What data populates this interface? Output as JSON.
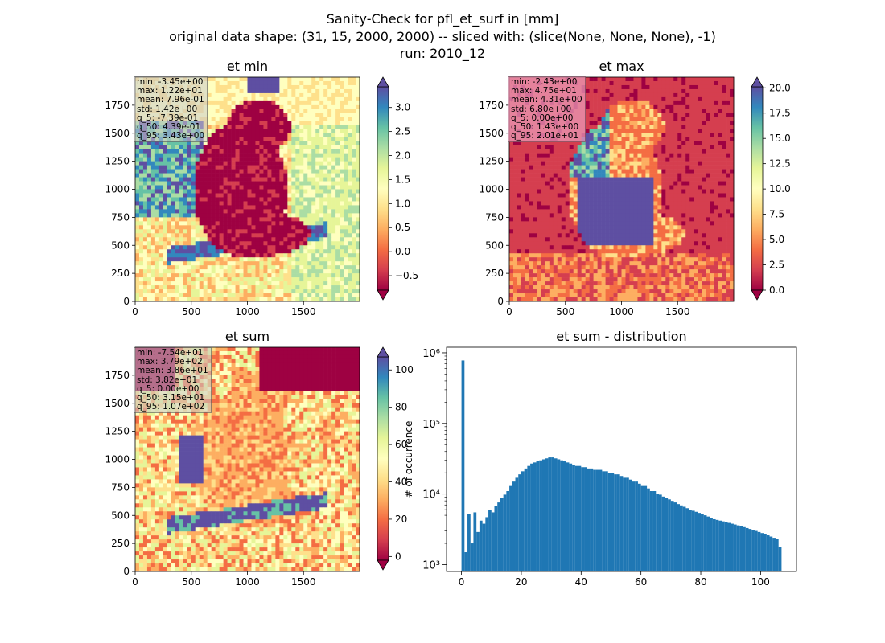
{
  "header": {
    "line1": "Sanity-Check for pfl_et_surf in [mm]",
    "line2": "original data shape: (31, 15, 2000, 2000) -- sliced with: (slice(None, None, None), -1)",
    "line3": "run: 2010_12"
  },
  "colors": {
    "spectral": [
      "#9e0142",
      "#d53e4f",
      "#f46d43",
      "#fdae61",
      "#fee08b",
      "#ffffbf",
      "#e6f598",
      "#abdda4",
      "#66c2a5",
      "#3288bd",
      "#5e4fa2"
    ],
    "histogram_bar": "#1f77b4"
  },
  "chart_data": [
    {
      "type": "heatmap",
      "title": "et min",
      "xlim": [
        0,
        2000
      ],
      "ylim": [
        0,
        2000
      ],
      "xticks": [
        0,
        500,
        1000,
        1500
      ],
      "yticks": [
        0,
        250,
        500,
        750,
        1000,
        1250,
        1500,
        1750
      ],
      "colorbar": {
        "min": -0.8,
        "max": 3.43,
        "ticks": [
          -0.5,
          0.0,
          0.5,
          1.0,
          1.5,
          2.0,
          2.5,
          3.0
        ],
        "tick_labels": [
          "−0.5",
          "0.0",
          "0.5",
          "1.0",
          "1.5",
          "2.0",
          "2.5",
          "3.0"
        ]
      },
      "stats": [
        "min: -3.45e+00",
        "max: 1.22e+01",
        "mean: 7.96e-01",
        "std: 1.42e+00",
        "q_5: -7.39e-01",
        "q_50: 4.39e-01",
        "q_95: 3.43e+00"
      ]
    },
    {
      "type": "heatmap",
      "title": "et max",
      "xlim": [
        0,
        2000
      ],
      "ylim": [
        0,
        2000
      ],
      "xticks": [
        0,
        500,
        1000,
        1500
      ],
      "yticks": [
        0,
        250,
        500,
        750,
        1000,
        1250,
        1500,
        1750
      ],
      "colorbar": {
        "min": 0.0,
        "max": 20.1,
        "ticks": [
          0.0,
          2.5,
          5.0,
          7.5,
          10.0,
          12.5,
          15.0,
          17.5,
          20.0
        ],
        "tick_labels": [
          "0.0",
          "2.5",
          "5.0",
          "7.5",
          "10.0",
          "12.5",
          "15.0",
          "17.5",
          "20.0"
        ]
      },
      "stats": [
        "min: -2.43e+00",
        "max: 4.75e+01",
        "mean: 4.31e+00",
        "std: 6.80e+00",
        "q_5: 0.00e+00",
        "q_50: 1.43e+00",
        "q_95: 2.01e+01"
      ]
    },
    {
      "type": "heatmap",
      "title": "et sum",
      "xlim": [
        0,
        2000
      ],
      "ylim": [
        0,
        2000
      ],
      "xticks": [
        0,
        500,
        1000,
        1500
      ],
      "yticks": [
        0,
        250,
        500,
        750,
        1000,
        1250,
        1500,
        1750
      ],
      "colorbar": {
        "min": -2,
        "max": 107,
        "ticks": [
          0,
          20,
          40,
          60,
          80,
          100
        ],
        "tick_labels": [
          "0",
          "20",
          "40",
          "60",
          "80",
          "100"
        ]
      },
      "stats": [
        "min: -7.54e+01",
        "max: 3.79e+02",
        "mean: 3.86e+01",
        "std: 3.82e+01",
        "q_5: 0.00e+00",
        "q_50: 3.15e+01",
        "q_95: 1.07e+02"
      ]
    },
    {
      "type": "bar",
      "title": "et sum - distribution",
      "ylabel": "# of occurrence",
      "yscale": "log",
      "xlim": [
        -5,
        112
      ],
      "ylim": [
        800,
        1200000
      ],
      "xticks": [
        0,
        20,
        40,
        60,
        80,
        100
      ],
      "ytick_labels": [
        "10³",
        "10⁴",
        "10⁵",
        "10⁶"
      ],
      "yticks": [
        1000,
        10000,
        100000,
        1000000
      ],
      "bin_range": [
        0,
        107
      ],
      "counts": [
        780000,
        1500,
        5200,
        2000,
        5500,
        2900,
        4200,
        3800,
        4700,
        5900,
        5500,
        6800,
        7600,
        8900,
        9800,
        11000,
        13000,
        15000,
        17000,
        19000,
        21000,
        23000,
        25000,
        27000,
        28000,
        29000,
        30000,
        31000,
        32000,
        33000,
        33000,
        32000,
        31000,
        30000,
        29000,
        28000,
        27000,
        26000,
        25000,
        25000,
        24000,
        24000,
        23000,
        23000,
        22000,
        22000,
        22000,
        21000,
        21000,
        20000,
        20000,
        19000,
        19000,
        18000,
        17000,
        17000,
        16000,
        15000,
        15000,
        14000,
        13000,
        13000,
        12000,
        11000,
        11000,
        10000,
        9800,
        9200,
        8800,
        8400,
        8000,
        7600,
        7200,
        6900,
        6600,
        6300,
        6000,
        5800,
        5600,
        5400,
        5200,
        5000,
        4800,
        4600,
        4400,
        4300,
        4200,
        4100,
        4000,
        3900,
        3800,
        3700,
        3600,
        3500,
        3400,
        3300,
        3200,
        3100,
        3000,
        2900,
        2800,
        2700,
        2600,
        2500,
        2400,
        2300,
        1800
      ]
    }
  ]
}
